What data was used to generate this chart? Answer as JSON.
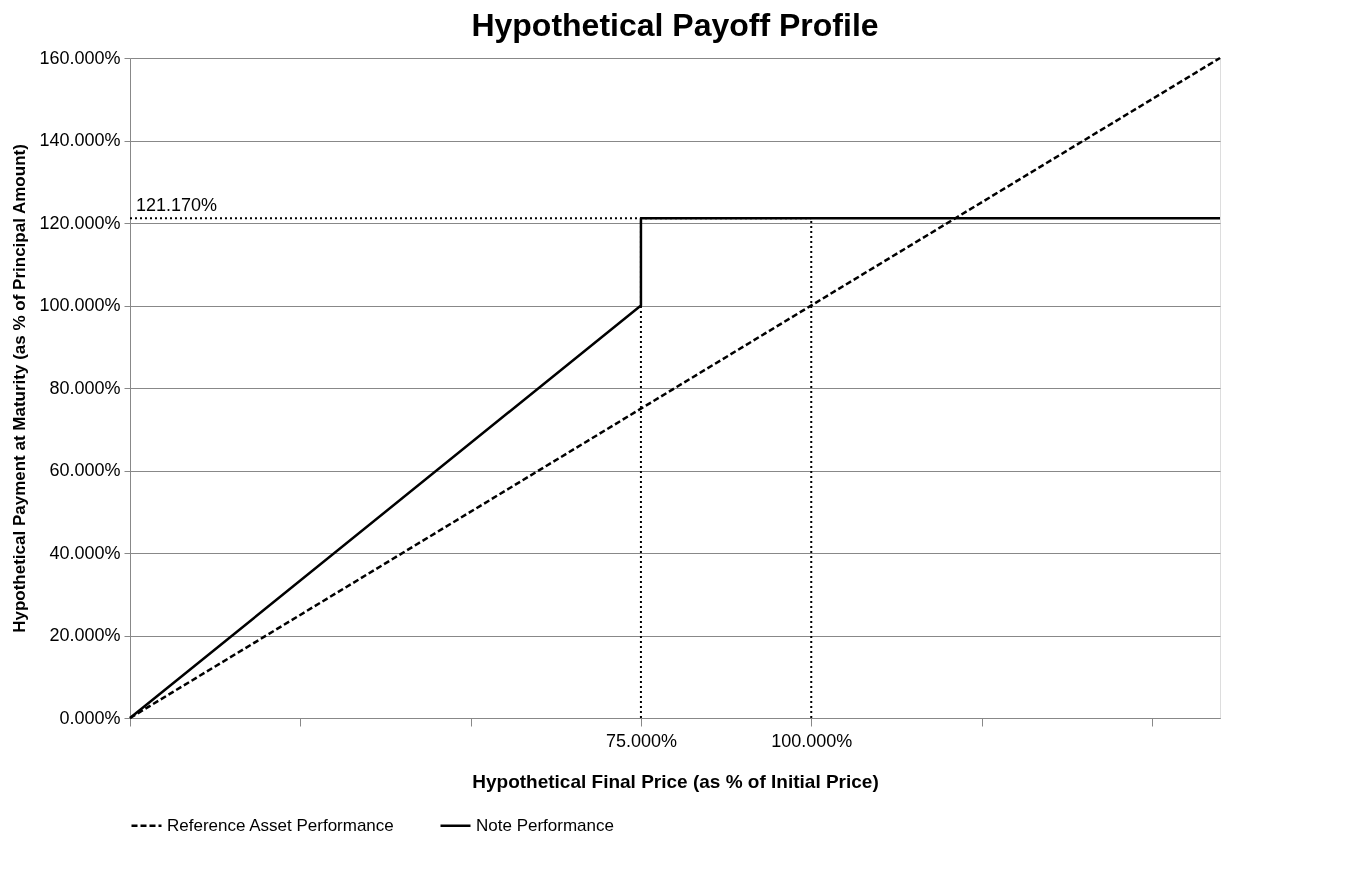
{
  "chart_data": {
    "type": "line",
    "title": "Hypothetical Payoff Profile",
    "xlabel": "Hypothetical Final Price (as % of Initial Price)",
    "ylabel": "Hypothetical Payment at Maturity (as % of Principal Amount)",
    "series": [
      {
        "name": "Reference Asset Performance",
        "color": "#000000",
        "line_style": "dashed",
        "x": [
          0,
          160
        ],
        "values": [
          0,
          160
        ]
      },
      {
        "name": "Note Performance",
        "color": "#000000",
        "line_style": "solid",
        "x": [
          0,
          75,
          75,
          160
        ],
        "values": [
          0,
          100,
          121.17,
          121.17
        ]
      }
    ],
    "xlim": [
      0,
      160
    ],
    "xticks": [
      {
        "value": 0,
        "label": null
      },
      {
        "value": 25,
        "label": null
      },
      {
        "value": 50,
        "label": null
      },
      {
        "value": 75,
        "label": "75.000%"
      },
      {
        "value": 100,
        "label": "100.000%"
      },
      {
        "value": 125,
        "label": null
      },
      {
        "value": 150,
        "label": null
      }
    ],
    "ylim": [
      0,
      160
    ],
    "yticks": [
      {
        "value": 0,
        "label": "0.000%"
      },
      {
        "value": 20,
        "label": "20.000%"
      },
      {
        "value": 40,
        "label": "40.000%"
      },
      {
        "value": 60,
        "label": "60.000%"
      },
      {
        "value": 80,
        "label": "80.000%"
      },
      {
        "value": 100,
        "label": "100.000%"
      },
      {
        "value": 120,
        "label": "120.000%"
      },
      {
        "value": 140,
        "label": "140.000%"
      },
      {
        "value": 160,
        "label": "160.000%"
      }
    ],
    "ref_lines": [
      {
        "axis": "y",
        "value": 121.17,
        "label": "121.170%",
        "line_style": "dotted",
        "color": "#000000"
      },
      {
        "axis": "x",
        "value": 75,
        "label": null,
        "line_style": "dotted",
        "color": "#000000"
      },
      {
        "axis": "x",
        "value": 100,
        "label": null,
        "line_style": "dotted",
        "color": "#000000"
      }
    ],
    "grid": "y",
    "legend": "bottom",
    "marker": "none"
  }
}
